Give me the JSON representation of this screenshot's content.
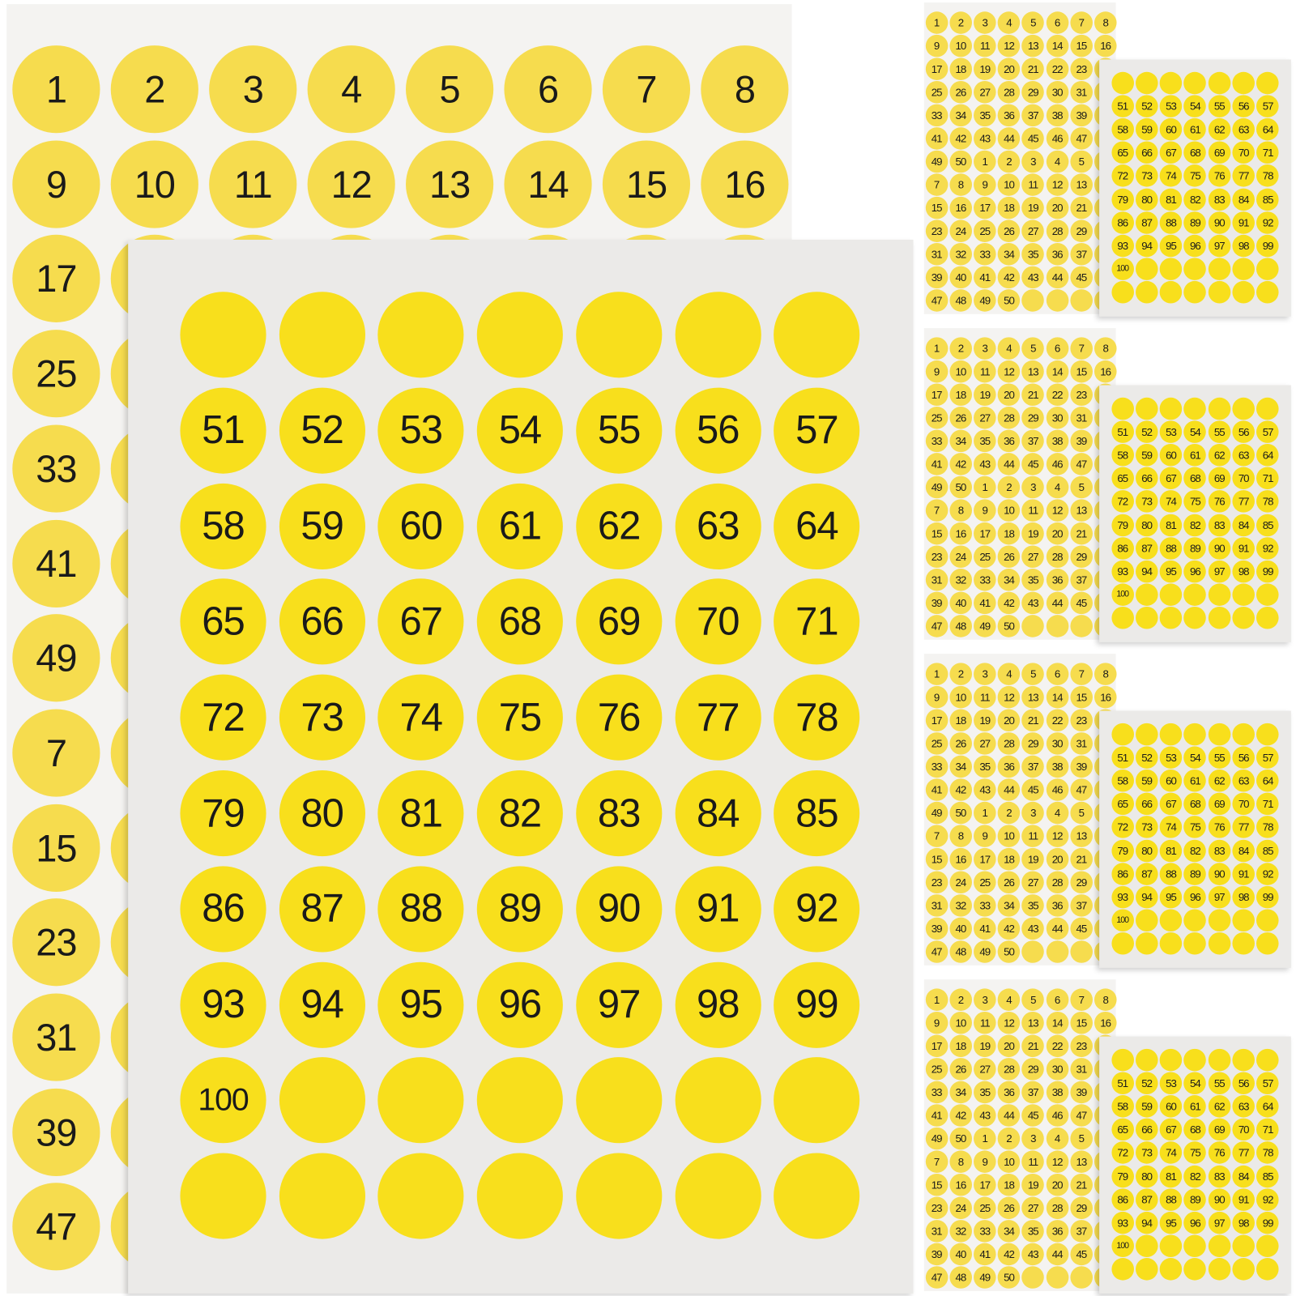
{
  "colors": {
    "back_sticker": "#f6dc4e",
    "front_sticker": "#f8df1c",
    "number_text": "#1a1a1a"
  },
  "sheets": {
    "sheet_a": {
      "columns": 8,
      "labels": [
        "1",
        "2",
        "3",
        "4",
        "5",
        "6",
        "7",
        "8",
        "9",
        "10",
        "11",
        "12",
        "13",
        "14",
        "15",
        "16",
        "17",
        "18",
        "19",
        "20",
        "21",
        "22",
        "23",
        "24",
        "25",
        "26",
        "27",
        "28",
        "29",
        "30",
        "31",
        "32",
        "33",
        "34",
        "35",
        "36",
        "37",
        "38",
        "39",
        "40",
        "41",
        "42",
        "43",
        "44",
        "45",
        "46",
        "47",
        "48",
        "49",
        "50",
        "1",
        "2",
        "3",
        "4",
        "5",
        "6",
        "7",
        "8",
        "9",
        "10",
        "11",
        "12",
        "13",
        "14",
        "15",
        "16",
        "17",
        "18",
        "19",
        "20",
        "21",
        "22",
        "23",
        "24",
        "25",
        "26",
        "27",
        "28",
        "29",
        "30",
        "31",
        "32",
        "33",
        "34",
        "35",
        "36",
        "37",
        "38",
        "39",
        "40",
        "41",
        "42",
        "43",
        "44",
        "45",
        "46",
        "47",
        "48",
        "49",
        "50",
        "",
        "",
        "",
        ""
      ]
    },
    "sheet_b": {
      "columns": 7,
      "labels": [
        "",
        "",
        "",
        "",
        "",
        "",
        "",
        "51",
        "52",
        "53",
        "54",
        "55",
        "56",
        "57",
        "58",
        "59",
        "60",
        "61",
        "62",
        "63",
        "64",
        "65",
        "66",
        "67",
        "68",
        "69",
        "70",
        "71",
        "72",
        "73",
        "74",
        "75",
        "76",
        "77",
        "78",
        "79",
        "80",
        "81",
        "82",
        "83",
        "84",
        "85",
        "86",
        "87",
        "88",
        "89",
        "90",
        "91",
        "92",
        "93",
        "94",
        "95",
        "96",
        "97",
        "98",
        "99",
        "100",
        "",
        "",
        "",
        "",
        "",
        "",
        "",
        "",
        "",
        "",
        "",
        "",
        ""
      ]
    }
  },
  "small_packs": 4
}
